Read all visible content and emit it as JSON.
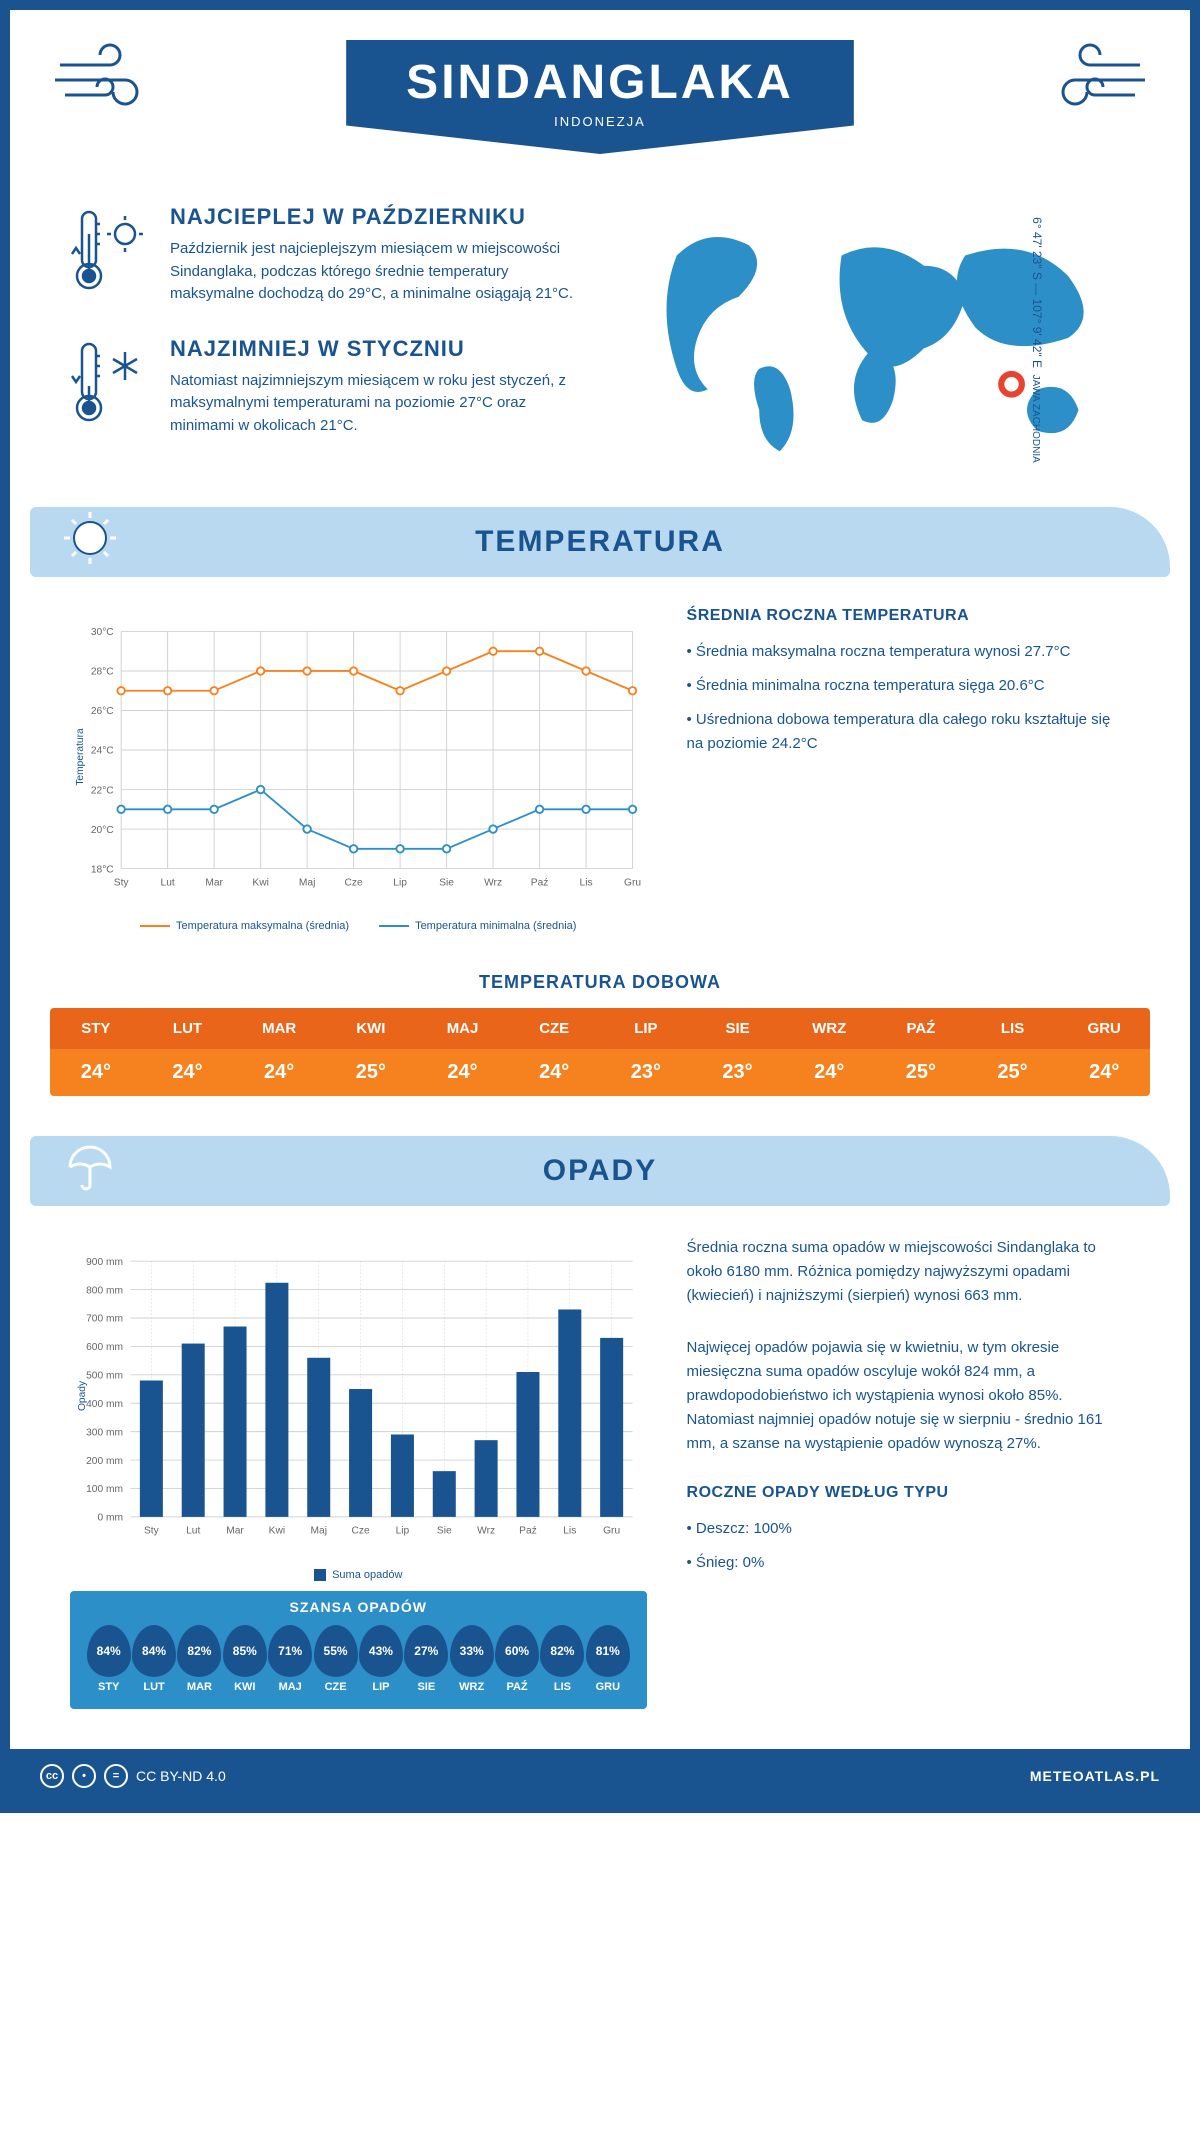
{
  "header": {
    "title": "SINDANGLAKA",
    "subtitle": "INDONEZJA"
  },
  "coords": {
    "lat": "6° 47' 23\" S",
    "lon": "107° 9' 42\" E",
    "region": "JAWA ZACHODNIA"
  },
  "facts": {
    "hot": {
      "title": "NAJCIEPLEJ W PAŹDZIERNIKU",
      "text": "Październik jest najcieplejszym miesiącem w miejscowości Sindanglaka, podczas którego średnie temperatury maksymalne dochodzą do 29°C, a minimalne osiągają 21°C."
    },
    "cold": {
      "title": "NAJZIMNIEJ W STYCZNIU",
      "text": "Natomiast najzimniejszym miesiącem w roku jest styczeń, z maksymalnymi temperaturami na poziomie 27°C oraz minimami w okolicach 21°C."
    }
  },
  "temp_section": {
    "title": "TEMPERATURA",
    "stats_title": "ŚREDNIA ROCZNA TEMPERATURA",
    "stat1": "• Średnia maksymalna roczna temperatura wynosi 27.7°C",
    "stat2": "• Średnia minimalna roczna temperatura sięga 20.6°C",
    "stat3": "• Uśredniona dobowa temperatura dla całego roku kształtuje się na poziomie 24.2°C",
    "daily_title": "TEMPERATURA DOBOWA",
    "legend_max": "Temperatura maksymalna (średnia)",
    "legend_min": "Temperatura minimalna (średnia)",
    "y_label": "Temperatura",
    "chart": {
      "months": [
        "Sty",
        "Lut",
        "Mar",
        "Kwi",
        "Maj",
        "Cze",
        "Lip",
        "Sie",
        "Wrz",
        "Paź",
        "Lis",
        "Gru"
      ],
      "max": [
        27,
        27,
        27,
        28,
        28,
        28,
        27,
        28,
        29,
        29,
        28,
        27
      ],
      "min": [
        21,
        21,
        21,
        22,
        20,
        19,
        19,
        19,
        20,
        21,
        21,
        21
      ],
      "ylim": [
        18,
        30
      ],
      "ytick_step": 2,
      "max_color": "#f5821f",
      "min_color": "#2d8fc8",
      "grid_color": "#d0d0d0",
      "background": "#ffffff"
    },
    "daily": {
      "months": [
        "STY",
        "LUT",
        "MAR",
        "KWI",
        "MAJ",
        "CZE",
        "LIP",
        "SIE",
        "WRZ",
        "PAŹ",
        "LIS",
        "GRU"
      ],
      "values": [
        "24°",
        "24°",
        "24°",
        "25°",
        "24°",
        "24°",
        "23°",
        "23°",
        "24°",
        "25°",
        "25°",
        "24°"
      ],
      "head_color": "#e8651a",
      "body_color": "#f5821f"
    }
  },
  "precip_section": {
    "title": "OPADY",
    "para1": "Średnia roczna suma opadów w miejscowości Sindanglaka to około 6180 mm. Różnica pomiędzy najwyższymi opadami (kwiecień) i najniższymi (sierpień) wynosi 663 mm.",
    "para2": "Najwięcej opadów pojawia się w kwietniu, w tym okresie miesięczna suma opadów oscyluje wokół 824 mm, a prawdopodobieństwo ich wystąpienia wynosi około 85%. Natomiast najmniej opadów notuje się w sierpniu - średnio 161 mm, a szanse na wystąpienie opadów wynoszą 27%.",
    "chance_title": "SZANSA OPADÓW",
    "type_title": "ROCZNE OPADY WEDŁUG TYPU",
    "type_rain": "• Deszcz: 100%",
    "type_snow": "• Śnieg: 0%",
    "legend": "Suma opadów",
    "y_label": "Opady",
    "chart": {
      "months": [
        "Sty",
        "Lut",
        "Mar",
        "Kwi",
        "Maj",
        "Cze",
        "Lip",
        "Sie",
        "Wrz",
        "Paź",
        "Lis",
        "Gru"
      ],
      "values": [
        480,
        610,
        670,
        824,
        560,
        450,
        290,
        161,
        270,
        510,
        730,
        630
      ],
      "ylim": [
        0,
        900
      ],
      "ytick_step": 100,
      "bar_color": "#1a5490",
      "grid_color": "#d0d0d0"
    },
    "chance": {
      "months": [
        "STY",
        "LUT",
        "MAR",
        "KWI",
        "MAJ",
        "CZE",
        "LIP",
        "SIE",
        "WRZ",
        "PAŹ",
        "LIS",
        "GRU"
      ],
      "values": [
        "84%",
        "84%",
        "82%",
        "85%",
        "71%",
        "55%",
        "43%",
        "27%",
        "33%",
        "60%",
        "82%",
        "81%"
      ]
    }
  },
  "footer": {
    "license": "CC BY-ND 4.0",
    "brand": "METEOATLAS.PL"
  },
  "colors": {
    "primary": "#1a5490",
    "light_blue": "#b8d9f0",
    "mid_blue": "#2d8fc8",
    "orange": "#f5821f"
  }
}
